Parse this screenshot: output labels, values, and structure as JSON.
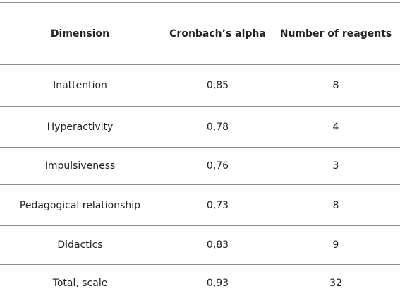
{
  "table": {
    "headers": [
      "Dimension",
      "Cronbach’s alpha",
      "Number of reagents"
    ],
    "rows": [
      [
        "Inattention",
        "0,85",
        "8"
      ],
      [
        "Hyperactivity",
        "0,78",
        "4"
      ],
      [
        "Impulsiveness",
        "0,76",
        "3"
      ],
      [
        "Pedagogical relationship",
        "0,73",
        "8"
      ],
      [
        "Didactics",
        "0,83",
        "9"
      ],
      [
        "Total, scale",
        "0,93",
        "32"
      ]
    ]
  }
}
